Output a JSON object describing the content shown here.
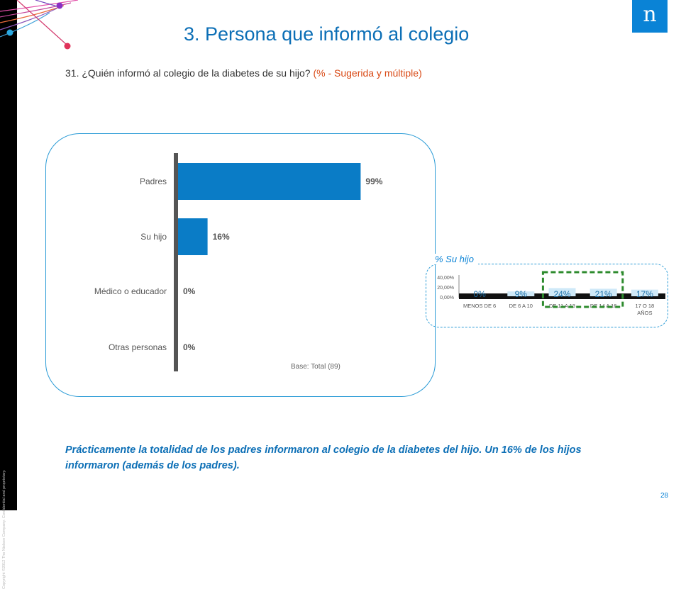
{
  "header": {
    "title": "3. Persona que informó al colegio",
    "question": "31. ¿Quién informó al colegio de la diabetes de su hijo? ",
    "question_note": "(% - Sugerida y múltiple)",
    "logo_letter": "n"
  },
  "copyright": "Copyright ©2012 The Nielsen Company. Confidential and proprietary.",
  "chart_data": [
    {
      "type": "bar",
      "orientation": "horizontal",
      "categories": [
        "Padres",
        "Su hijo",
        "Médico o educador",
        "Otras personas"
      ],
      "values": [
        99,
        16,
        0,
        0
      ],
      "value_labels": [
        "99%",
        "16%",
        "0%",
        "0%"
      ],
      "xlim": [
        0,
        100
      ],
      "color": "#0a7cc6",
      "base_note": "Base: Total (89)"
    },
    {
      "type": "bar",
      "title": "% Su hijo",
      "categories": [
        "MENOS DE 6",
        "DE 6 A 10",
        "DE 11 A 13",
        "DE 14 A 16",
        "17 O 18 AÑOS"
      ],
      "values": [
        0,
        9,
        24,
        21,
        17
      ],
      "value_labels": [
        "0%",
        "9%",
        "24%",
        "21%",
        "17%"
      ],
      "ylim": [
        0,
        40
      ],
      "yticks": [
        "40,00%",
        "20,00%",
        "0,00%"
      ],
      "highlight": [
        "DE 11 A 13",
        "DE 14 A 16"
      ],
      "highlight_color": "#2e8b2e",
      "color": "#cfe9f8"
    }
  ],
  "conclusion": "Prácticamente la totalidad de los padres informaron al colegio de la diabetes del hijo. Un 16% de los hijos informaron (además de los padres).",
  "page_number": "28"
}
